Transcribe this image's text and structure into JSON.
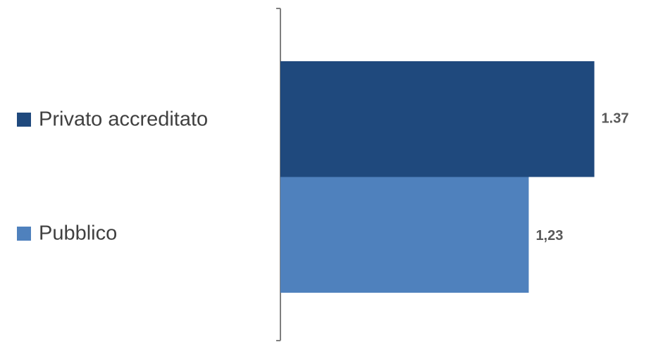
{
  "chart_data": {
    "type": "hbar",
    "categories": [
      null
    ],
    "series": [
      {
        "name": "Privato accreditato",
        "color": "#1f497d",
        "values": [
          1.37
        ],
        "value_labels": [
          "1.37"
        ]
      },
      {
        "name": "Pubblico",
        "color": "#4f81bd",
        "values": [
          1.23
        ],
        "value_labels": [
          "1,23"
        ]
      }
    ],
    "xlim": [
      0.7,
      1.5
    ],
    "legend": "left"
  }
}
